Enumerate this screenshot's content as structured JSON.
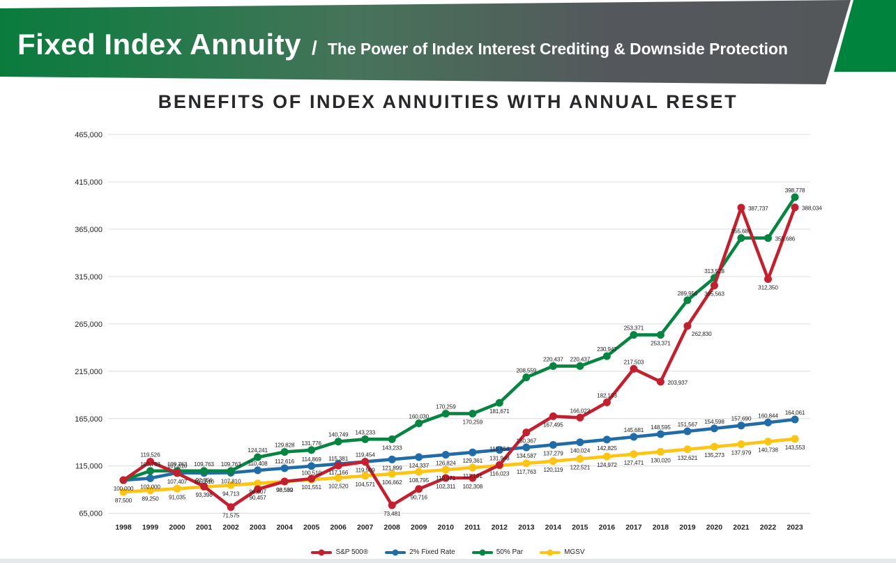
{
  "header": {
    "title": "Fixed Index Annuity",
    "separator": "/",
    "subtitle": "The Power of Index Interest Crediting & Downside Protection"
  },
  "chart_title": "BENEFITS OF INDEX ANNUITIES WITH ANNUAL RESET",
  "colors": {
    "red": "#c3202f",
    "blue": "#1f6ca9",
    "green": "#068441",
    "yellow": "#fdc414",
    "grid": "#dcdcdc",
    "text": "#231f20",
    "banner_green": "#0a7b3d",
    "banner_gray": "#54575a",
    "corner_green": "#00843d",
    "footer_bar": "#e6e7e8"
  },
  "chart_data": {
    "type": "line",
    "title": "BENEFITS OF INDEX ANNUITIES WITH ANNUAL RESET",
    "xlabel": "",
    "ylabel": "",
    "x": [
      1998,
      1999,
      2000,
      2001,
      2002,
      2003,
      2004,
      2005,
      2006,
      2007,
      2008,
      2009,
      2010,
      2011,
      2012,
      2013,
      2014,
      2015,
      2016,
      2017,
      2018,
      2019,
      2020,
      2021,
      2022,
      2023
    ],
    "y_ticks": [
      465000,
      415000,
      365000,
      315000,
      265000,
      215000,
      165000,
      115000,
      65000
    ],
    "ylim": [
      65000,
      465000
    ],
    "grid": true,
    "legend_position": "bottom",
    "series": [
      {
        "name": "S&P 500®",
        "color_key": "red",
        "values": [
          100000,
          119526,
          107407,
          93398,
          71575,
          90457,
          98592,
          101551,
          115381,
          119454,
          73481,
          90716,
          102311,
          102308,
          116023,
          150367,
          167495,
          166023,
          182133,
          217503,
          203937,
          262830,
          305563,
          387737,
          312350,
          388034
        ],
        "label_placement": [
          "b",
          "a",
          "b",
          "b",
          "b",
          "b",
          "b",
          "b",
          "a",
          "a",
          "b",
          "b",
          "b",
          "b",
          "b",
          "b",
          "b",
          "a",
          "a",
          "a",
          "r",
          "br",
          "b",
          "r",
          "b",
          "r"
        ]
      },
      {
        "name": "2% Fixed Rate",
        "color_key": "blue",
        "values": [
          100000,
          102000,
          107810,
          107610,
          107810,
          110408,
          112616,
          114869,
          117166,
          119509,
          121899,
          124337,
          126824,
          129361,
          131948,
          134587,
          137279,
          140024,
          142825,
          145681,
          148595,
          151567,
          154598,
          157690,
          160844,
          164061
        ],
        "label_placement": [
          "n",
          "b",
          "a",
          "b",
          "b",
          "a",
          "a",
          "a",
          "b",
          "b",
          "b",
          "b",
          "b",
          "b",
          "b",
          "b",
          "b",
          "b",
          "b",
          "a",
          "a",
          "a",
          "a",
          "a",
          "a",
          "a"
        ]
      },
      {
        "name": "50% Par",
        "color_key": "green",
        "values": [
          100000,
          109763,
          109763,
          109763,
          109763,
          124241,
          129828,
          131776,
          140749,
          143233,
          143233,
          160030,
          170259,
          170259,
          181671,
          208559,
          220437,
          220437,
          230947,
          253371,
          253371,
          289956,
          313528,
          355686,
          355686,
          398778
        ],
        "label_placement": [
          "n",
          "a",
          "a",
          "a",
          "a",
          "a",
          "a",
          "a",
          "a",
          "a",
          "b",
          "a",
          "a",
          "b",
          "b",
          "a",
          "a",
          "a",
          "a",
          "a",
          "b",
          "a",
          "a",
          "a",
          "r",
          "a"
        ]
      },
      {
        "name": "MGSV",
        "color_key": "yellow",
        "values": [
          87500,
          89250,
          91035,
          92856,
          94713,
          96607,
          98539,
          100510,
          102520,
          104571,
          106662,
          108795,
          110971,
          113191,
          115454,
          117763,
          120119,
          122521,
          124972,
          127471,
          130020,
          132621,
          135273,
          137979,
          140738,
          143553
        ],
        "label_placement": [
          "b",
          "b",
          "b",
          "a",
          "b",
          "b",
          "b",
          "a",
          "b",
          "b",
          "b",
          "b",
          "b",
          "b",
          "A",
          "b",
          "b",
          "b",
          "b",
          "b",
          "b",
          "b",
          "b",
          "b",
          "b",
          "b"
        ]
      }
    ]
  }
}
